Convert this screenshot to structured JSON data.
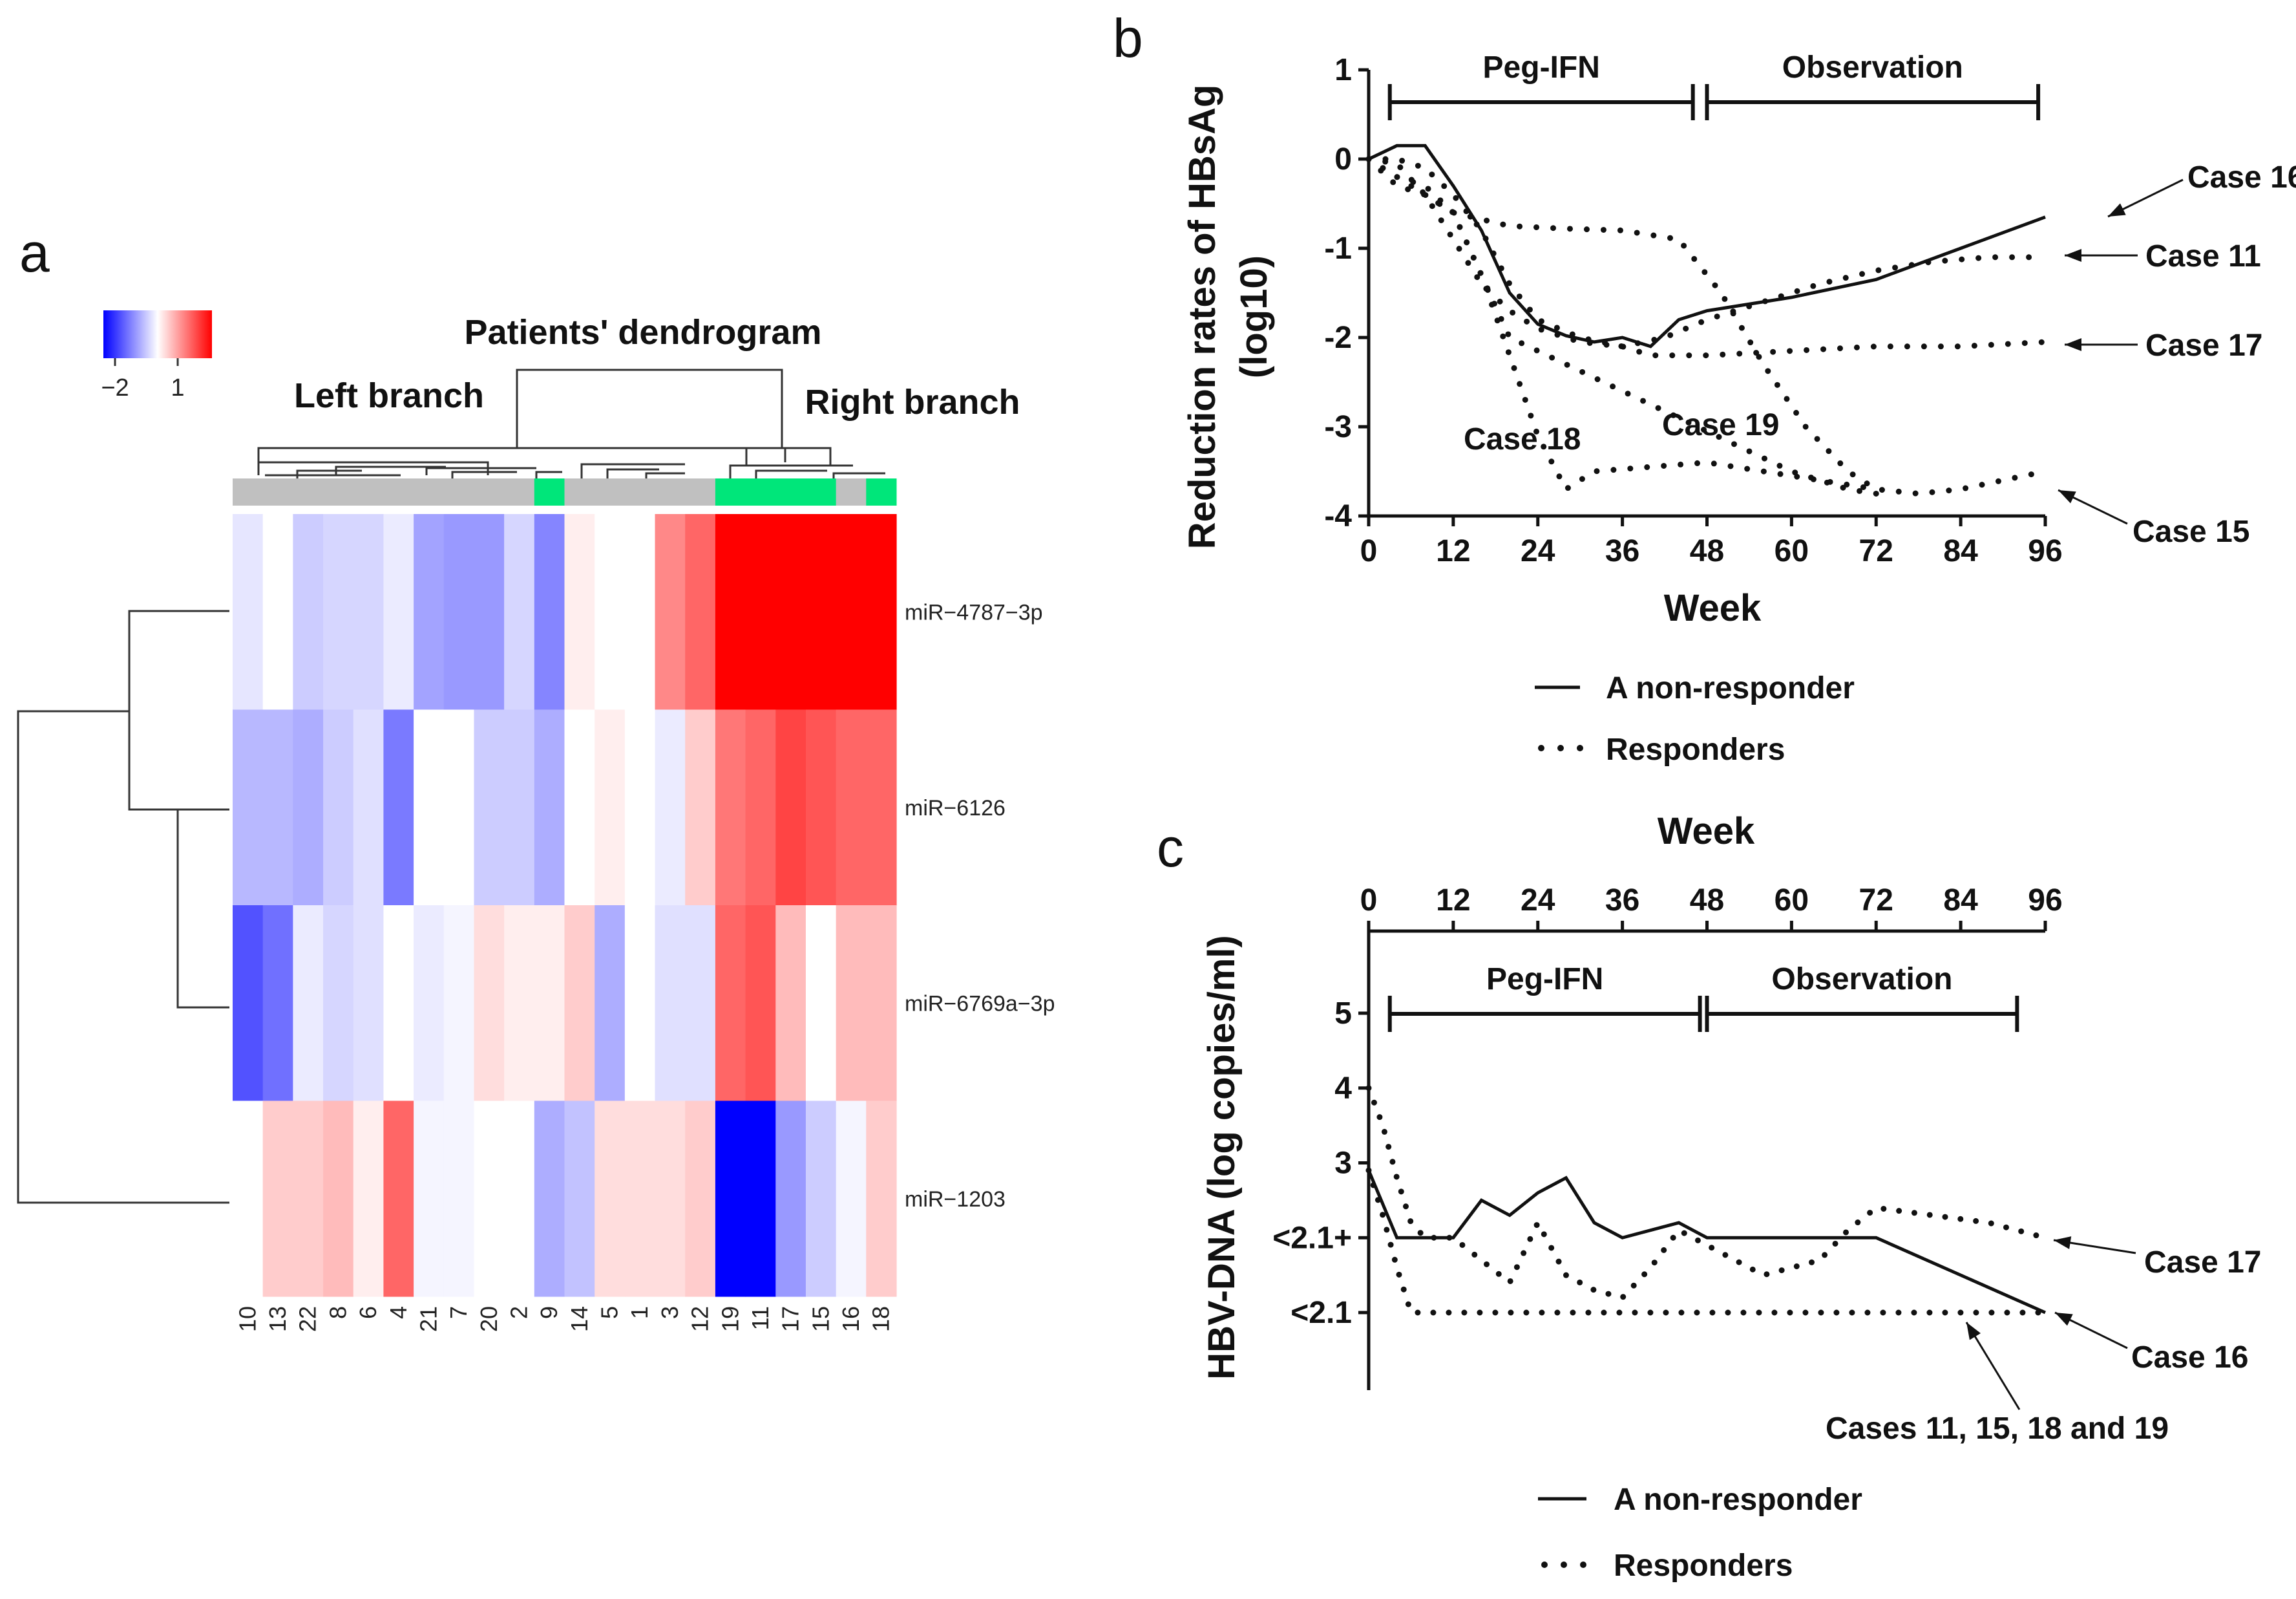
{
  "panels": {
    "a": "a",
    "b": "b",
    "c": "c"
  },
  "colors": {
    "low": "#0000ff",
    "mid": "#ffffff",
    "high": "#ff0000",
    "responder_bar": "#00e67a",
    "nonresponder_bar": "#c0c0c0"
  },
  "chart_data": [
    {
      "type": "heatmap",
      "title": "Patients' dendrogram",
      "branch_labels": {
        "left": "Left branch",
        "right": "Right branch"
      },
      "colorbar": {
        "ticks": [
          "−2",
          "1"
        ],
        "range": [
          -2.5,
          1.5
        ]
      },
      "columns": [
        "10",
        "13",
        "22",
        "8",
        "6",
        "4",
        "21",
        "7",
        "20",
        "2",
        "9",
        "14",
        "5",
        "1",
        "3",
        "12",
        "19",
        "11",
        "17",
        "15",
        "16",
        "18"
      ],
      "column_groups": [
        "non",
        "non",
        "non",
        "non",
        "non",
        "non",
        "non",
        "non",
        "non",
        "non",
        "resp",
        "non",
        "non",
        "non",
        "non",
        "non",
        "resp",
        "resp",
        "resp",
        "resp",
        "non",
        "resp"
      ],
      "rows": [
        "miR−4787−3p",
        "miR−6126",
        "miR−6769a−3p",
        "miR−1203"
      ],
      "values": [
        [
          -0.25,
          0.0,
          -0.5,
          -0.4,
          -0.4,
          -0.2,
          -0.9,
          -1.0,
          -1.0,
          -0.4,
          -1.2,
          0.1,
          0.0,
          0.0,
          0.7,
          0.9,
          1.5,
          2.0,
          1.6,
          1.7,
          1.8,
          1.9
        ],
        [
          -0.7,
          -0.7,
          -0.8,
          -0.5,
          -0.3,
          -1.3,
          0.0,
          0.0,
          -0.5,
          -0.5,
          -0.8,
          0.0,
          0.1,
          0.0,
          -0.2,
          0.3,
          0.8,
          0.9,
          1.1,
          1.0,
          0.9,
          0.9
        ],
        [
          -1.7,
          -1.4,
          -0.2,
          -0.4,
          -0.3,
          0.0,
          -0.2,
          -0.1,
          0.2,
          0.1,
          0.1,
          0.3,
          -0.8,
          0.0,
          -0.3,
          -0.3,
          0.9,
          1.0,
          0.4,
          0.0,
          0.4,
          0.4
        ],
        [
          0.0,
          0.3,
          0.3,
          0.4,
          0.1,
          0.9,
          -0.1,
          -0.1,
          0.0,
          0.0,
          -0.8,
          -0.6,
          0.2,
          0.2,
          0.2,
          0.3,
          -2.5,
          -2.5,
          -1.0,
          -0.5,
          -0.1,
          0.3
        ]
      ]
    },
    {
      "type": "line",
      "ylabel": "Reduction rates of HBsAg (log10)",
      "xlabel": "Week",
      "xlim": [
        0,
        96
      ],
      "ylim": [
        -4,
        1
      ],
      "xticks": [
        0,
        12,
        24,
        36,
        48,
        60,
        72,
        84,
        96
      ],
      "yticks": [
        1,
        0,
        -1,
        -2,
        -3,
        -4
      ],
      "phases": [
        {
          "label": "Peg-IFN",
          "from": 3,
          "to": 46
        },
        {
          "label": "Observation",
          "from": 48,
          "to": 95
        }
      ],
      "legend": {
        "solid": "A non-responder",
        "dotted": "Responders"
      },
      "series": [
        {
          "name": "A non-responder",
          "style": "solid",
          "x": [
            0,
            4,
            8,
            12,
            16,
            20,
            24,
            28,
            32,
            36,
            40,
            44,
            48,
            60,
            72,
            84,
            96
          ],
          "y": [
            0,
            0.15,
            0.15,
            -0.3,
            -0.8,
            -1.5,
            -1.85,
            -1.98,
            -2.05,
            -2.0,
            -2.1,
            -1.8,
            -1.7,
            -1.55,
            -1.35,
            -1.0,
            -0.65
          ]
        },
        {
          "name": "Case 11",
          "style": "dotted",
          "x": [
            0,
            4,
            8,
            12,
            16,
            20,
            24,
            30,
            36,
            42,
            48,
            56,
            64,
            72,
            80,
            88,
            96
          ],
          "y": [
            0,
            0.0,
            -0.1,
            -0.4,
            -0.8,
            -1.4,
            -1.8,
            -2.0,
            -2.1,
            -2.0,
            -1.8,
            -1.6,
            -1.4,
            -1.25,
            -1.15,
            -1.1,
            -1.1
          ]
        },
        {
          "name": "Case 17",
          "style": "dotted",
          "x": [
            0,
            4,
            8,
            12,
            16,
            20,
            24,
            30,
            36,
            40,
            48,
            60,
            72,
            84,
            96
          ],
          "y": [
            0,
            -0.05,
            -0.4,
            -0.9,
            -1.4,
            -1.7,
            -1.9,
            -2.05,
            -2.1,
            -2.2,
            -2.2,
            -2.15,
            -2.1,
            -2.1,
            -2.05
          ]
        },
        {
          "name": "Case 15",
          "style": "dotted",
          "x": [
            0,
            4,
            8,
            12,
            20,
            28,
            36,
            44,
            50,
            56,
            62,
            68,
            72,
            78,
            84,
            90,
            96
          ],
          "y": [
            0,
            -0.2,
            -0.4,
            -0.6,
            -0.75,
            -0.78,
            -0.8,
            -0.9,
            -1.5,
            -2.3,
            -3.0,
            -3.5,
            -3.7,
            -3.75,
            -3.7,
            -3.6,
            -3.5
          ]
        },
        {
          "name": "Case 18",
          "style": "dotted",
          "x": [
            0,
            4,
            8,
            12,
            16,
            20,
            24,
            28,
            32,
            40,
            48,
            56,
            64,
            72
          ],
          "y": [
            0,
            -0.3,
            -0.4,
            -0.6,
            -1.3,
            -2.2,
            -3.1,
            -3.7,
            -3.5,
            -3.45,
            -3.4,
            -3.5,
            -3.6,
            -3.7
          ]
        },
        {
          "name": "Case 19",
          "style": "dotted",
          "x": [
            0,
            4,
            8,
            12,
            16,
            20,
            28,
            36,
            44,
            52,
            60,
            68,
            72
          ],
          "y": [
            0,
            -0.2,
            -0.3,
            -0.6,
            -1.3,
            -2.0,
            -2.3,
            -2.6,
            -2.9,
            -3.2,
            -3.5,
            -3.7,
            -3.75
          ]
        }
      ],
      "annotations": [
        "Case 16",
        "Case 11",
        "Case 17",
        "Case 15",
        "Case 18",
        "Case 19"
      ]
    },
    {
      "type": "line",
      "ylabel": "HBV-DNA (log copies/ml)",
      "xlabel": "Week",
      "xlim": [
        0,
        96
      ],
      "xticks": [
        0,
        12,
        24,
        36,
        48,
        60,
        72,
        84,
        96
      ],
      "ytick_labels": [
        "5",
        "4",
        "3",
        "<2.1+",
        "<2.1"
      ],
      "ytick_values": [
        5,
        4,
        3,
        2,
        1
      ],
      "phases": [
        {
          "label": "Peg-IFN",
          "from": 3,
          "to": 47
        },
        {
          "label": "Observation",
          "from": 48,
          "to": 92
        }
      ],
      "legend": {
        "solid": "A non-responder",
        "dotted": "Responders"
      },
      "series": [
        {
          "name": "A non-responder",
          "style": "solid",
          "x": [
            0,
            4,
            8,
            12,
            16,
            20,
            24,
            28,
            32,
            36,
            44,
            48,
            72,
            96
          ],
          "y": [
            2.9,
            2.0,
            2.0,
            2.0,
            2.5,
            2.3,
            2.6,
            2.8,
            2.2,
            2.0,
            2.2,
            2.0,
            2.0,
            1.0
          ]
        },
        {
          "name": "Case 17",
          "style": "dotted",
          "x": [
            0,
            2,
            4,
            6,
            8,
            12,
            16,
            20,
            24,
            28,
            32,
            36,
            40,
            44,
            48,
            56,
            64,
            68,
            72,
            80,
            88,
            96
          ],
          "y": [
            4.0,
            3.5,
            2.8,
            2.2,
            2.0,
            2.0,
            1.7,
            1.4,
            2.2,
            1.5,
            1.3,
            1.2,
            1.6,
            2.1,
            1.9,
            1.5,
            1.7,
            2.1,
            2.4,
            2.3,
            2.2,
            2.0
          ]
        },
        {
          "name": "Cases 11, 15, 18 and 19",
          "style": "dotted",
          "x": [
            0,
            2,
            4,
            6,
            12,
            24,
            36,
            48,
            60,
            72,
            84,
            96
          ],
          "y": [
            2.9,
            2.3,
            1.6,
            1.0,
            1.0,
            1.0,
            1.0,
            1.0,
            1.0,
            1.0,
            1.0,
            1.0
          ]
        }
      ],
      "annotations": [
        "Case 17",
        "Case 16",
        "Cases 11, 15, 18 and 19"
      ]
    }
  ]
}
